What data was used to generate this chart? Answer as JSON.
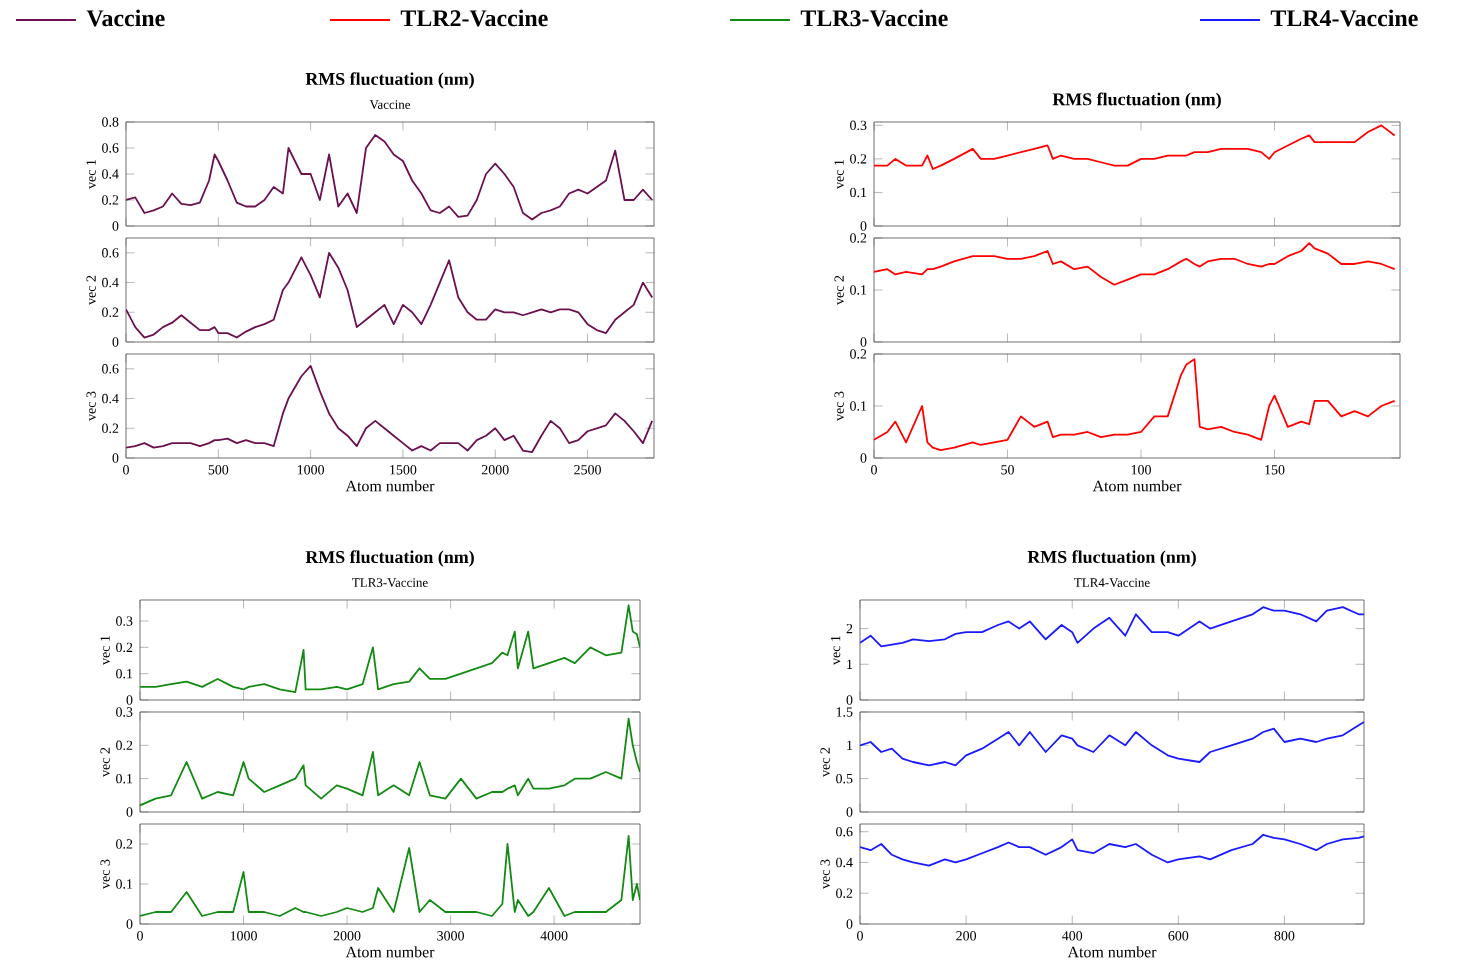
{
  "chart_data": [
    {
      "type": "line",
      "title": "RMS fluctuation (nm)",
      "subtitle": "Vaccine",
      "ylabel": "vec 1",
      "legend": "top",
      "tick_labels": "y",
      "xlim": [
        0,
        2860
      ],
      "xticks": [
        0,
        500,
        1000,
        1500,
        2000,
        2500
      ],
      "ylim": [
        0,
        0.8
      ],
      "yticks": [
        0,
        0.2,
        0.4,
        0.6,
        0.8
      ],
      "x": [
        0,
        50,
        100,
        150,
        200,
        250,
        300,
        350,
        400,
        450,
        480,
        500,
        550,
        600,
        650,
        700,
        750,
        800,
        850,
        880,
        950,
        1000,
        1050,
        1100,
        1150,
        1200,
        1250,
        1300,
        1350,
        1400,
        1450,
        1500,
        1550,
        1600,
        1650,
        1700,
        1750,
        1800,
        1850,
        1900,
        1950,
        2000,
        2050,
        2100,
        2150,
        2200,
        2250,
        2300,
        2350,
        2400,
        2450,
        2500,
        2550,
        2600,
        2650,
        2700,
        2750,
        2800,
        2850
      ],
      "series": [
        {
          "name": "Vaccine",
          "color": "#6b1050",
          "values": [
            0.2,
            0.22,
            0.1,
            0.12,
            0.15,
            0.25,
            0.17,
            0.16,
            0.18,
            0.35,
            0.55,
            0.5,
            0.35,
            0.18,
            0.15,
            0.15,
            0.2,
            0.3,
            0.25,
            0.6,
            0.4,
            0.4,
            0.2,
            0.55,
            0.15,
            0.25,
            0.1,
            0.6,
            0.7,
            0.65,
            0.55,
            0.5,
            0.35,
            0.25,
            0.12,
            0.1,
            0.15,
            0.07,
            0.08,
            0.2,
            0.4,
            0.48,
            0.4,
            0.3,
            0.1,
            0.05,
            0.1,
            0.12,
            0.15,
            0.25,
            0.28,
            0.25,
            0.3,
            0.35,
            0.58,
            0.2,
            0.2,
            0.28,
            0.2
          ]
        }
      ]
    },
    {
      "type": "line",
      "ylabel": "vec 2",
      "tick_labels": "y",
      "xlim": [
        0,
        2860
      ],
      "xticks": [
        0,
        500,
        1000,
        1500,
        2000,
        2500
      ],
      "ylim": [
        0,
        0.7
      ],
      "yticks": [
        0,
        0.2,
        0.4,
        0.6
      ],
      "x": [
        0,
        50,
        100,
        150,
        200,
        250,
        300,
        350,
        400,
        450,
        480,
        500,
        550,
        600,
        650,
        700,
        750,
        800,
        850,
        880,
        950,
        1000,
        1050,
        1100,
        1150,
        1200,
        1250,
        1300,
        1350,
        1400,
        1450,
        1500,
        1550,
        1600,
        1650,
        1700,
        1750,
        1800,
        1850,
        1900,
        1950,
        2000,
        2050,
        2100,
        2150,
        2200,
        2250,
        2300,
        2350,
        2400,
        2450,
        2500,
        2550,
        2600,
        2650,
        2700,
        2750,
        2800,
        2850
      ],
      "series": [
        {
          "color": "#6b1050",
          "values": [
            0.22,
            0.1,
            0.03,
            0.05,
            0.1,
            0.13,
            0.18,
            0.13,
            0.08,
            0.08,
            0.1,
            0.06,
            0.06,
            0.03,
            0.07,
            0.1,
            0.12,
            0.15,
            0.35,
            0.4,
            0.57,
            0.45,
            0.3,
            0.6,
            0.5,
            0.35,
            0.1,
            0.15,
            0.2,
            0.25,
            0.12,
            0.25,
            0.2,
            0.12,
            0.25,
            0.4,
            0.55,
            0.3,
            0.2,
            0.15,
            0.15,
            0.22,
            0.2,
            0.2,
            0.18,
            0.2,
            0.22,
            0.2,
            0.22,
            0.22,
            0.2,
            0.12,
            0.08,
            0.06,
            0.15,
            0.2,
            0.25,
            0.4,
            0.3
          ]
        }
      ]
    },
    {
      "type": "line",
      "ylabel": "vec 3",
      "xlabel": "Atom number",
      "xlim": [
        0,
        2860
      ],
      "xticks": [
        0,
        500,
        1000,
        1500,
        2000,
        2500
      ],
      "ylim": [
        0,
        0.7
      ],
      "yticks": [
        0,
        0.2,
        0.4,
        0.6
      ],
      "x": [
        0,
        50,
        100,
        150,
        200,
        250,
        300,
        350,
        400,
        450,
        480,
        500,
        550,
        600,
        650,
        700,
        750,
        800,
        850,
        880,
        950,
        1000,
        1050,
        1100,
        1150,
        1200,
        1250,
        1300,
        1350,
        1400,
        1450,
        1500,
        1550,
        1600,
        1650,
        1700,
        1750,
        1800,
        1850,
        1900,
        1950,
        2000,
        2050,
        2100,
        2150,
        2200,
        2250,
        2300,
        2350,
        2400,
        2450,
        2500,
        2550,
        2600,
        2650,
        2700,
        2750,
        2800,
        2850
      ],
      "series": [
        {
          "color": "#6b1050",
          "values": [
            0.07,
            0.08,
            0.1,
            0.07,
            0.08,
            0.1,
            0.1,
            0.1,
            0.08,
            0.1,
            0.12,
            0.12,
            0.13,
            0.1,
            0.12,
            0.1,
            0.1,
            0.08,
            0.3,
            0.4,
            0.55,
            0.62,
            0.45,
            0.3,
            0.2,
            0.15,
            0.08,
            0.2,
            0.25,
            0.2,
            0.15,
            0.1,
            0.05,
            0.08,
            0.05,
            0.1,
            0.1,
            0.1,
            0.05,
            0.12,
            0.15,
            0.2,
            0.12,
            0.15,
            0.05,
            0.04,
            0.15,
            0.25,
            0.2,
            0.1,
            0.12,
            0.18,
            0.2,
            0.22,
            0.3,
            0.25,
            0.18,
            0.1,
            0.25
          ]
        }
      ]
    },
    {
      "type": "line",
      "title": "RMS fluctuation (nm)",
      "ylabel": "vec 1",
      "legend": "top",
      "tick_labels": "y",
      "xlim": [
        0,
        197
      ],
      "xticks": [
        0,
        50,
        100,
        150
      ],
      "ylim": [
        0,
        0.31
      ],
      "yticks": [
        0,
        0.1,
        0.2,
        0.3
      ],
      "x": [
        0,
        5,
        8,
        12,
        18,
        20,
        22,
        25,
        30,
        37,
        40,
        45,
        50,
        55,
        60,
        65,
        67,
        70,
        75,
        80,
        85,
        90,
        95,
        100,
        105,
        110,
        115,
        117,
        120,
        122,
        125,
        130,
        135,
        140,
        145,
        148,
        150,
        155,
        160,
        163,
        165,
        170,
        175,
        180,
        185,
        190,
        195
      ],
      "series": [
        {
          "name": "TLR2-Vaccine",
          "color": "#ff0000",
          "values": [
            0.18,
            0.18,
            0.2,
            0.18,
            0.18,
            0.21,
            0.17,
            0.18,
            0.2,
            0.23,
            0.2,
            0.2,
            0.21,
            0.22,
            0.23,
            0.24,
            0.2,
            0.21,
            0.2,
            0.2,
            0.19,
            0.18,
            0.18,
            0.2,
            0.2,
            0.21,
            0.21,
            0.21,
            0.22,
            0.22,
            0.22,
            0.23,
            0.23,
            0.23,
            0.22,
            0.2,
            0.22,
            0.24,
            0.26,
            0.27,
            0.25,
            0.25,
            0.25,
            0.25,
            0.28,
            0.3,
            0.27
          ]
        }
      ]
    },
    {
      "type": "line",
      "ylabel": "vec 2",
      "tick_labels": "y",
      "xlim": [
        0,
        197
      ],
      "xticks": [
        0,
        50,
        100,
        150
      ],
      "ylim": [
        0,
        0.2
      ],
      "yticks": [
        0,
        0.1,
        0.2
      ],
      "x": [
        0,
        5,
        8,
        12,
        18,
        20,
        22,
        25,
        30,
        37,
        40,
        45,
        50,
        55,
        60,
        65,
        67,
        70,
        75,
        80,
        85,
        90,
        95,
        100,
        105,
        110,
        115,
        117,
        120,
        122,
        125,
        130,
        135,
        140,
        145,
        148,
        150,
        155,
        160,
        163,
        165,
        170,
        175,
        180,
        185,
        190,
        195
      ],
      "series": [
        {
          "color": "#ff0000",
          "values": [
            0.135,
            0.14,
            0.13,
            0.135,
            0.13,
            0.14,
            0.14,
            0.145,
            0.155,
            0.165,
            0.165,
            0.165,
            0.16,
            0.16,
            0.165,
            0.175,
            0.15,
            0.155,
            0.14,
            0.145,
            0.125,
            0.11,
            0.12,
            0.13,
            0.13,
            0.14,
            0.155,
            0.16,
            0.15,
            0.145,
            0.155,
            0.16,
            0.16,
            0.15,
            0.145,
            0.15,
            0.15,
            0.165,
            0.175,
            0.19,
            0.18,
            0.17,
            0.15,
            0.15,
            0.155,
            0.15,
            0.14
          ]
        }
      ]
    },
    {
      "type": "line",
      "ylabel": "vec 3",
      "xlabel": "Atom number",
      "xlim": [
        0,
        197
      ],
      "xticks": [
        0,
        50,
        100,
        150
      ],
      "ylim": [
        0,
        0.2
      ],
      "yticks": [
        0,
        0.1,
        0.2
      ],
      "x": [
        0,
        5,
        8,
        12,
        18,
        20,
        22,
        25,
        30,
        37,
        40,
        45,
        50,
        55,
        60,
        65,
        67,
        70,
        75,
        80,
        85,
        90,
        95,
        100,
        105,
        110,
        115,
        117,
        120,
        122,
        125,
        130,
        135,
        140,
        145,
        148,
        150,
        155,
        160,
        163,
        165,
        170,
        175,
        180,
        185,
        190,
        195
      ],
      "series": [
        {
          "color": "#ff0000",
          "values": [
            0.035,
            0.05,
            0.07,
            0.03,
            0.1,
            0.03,
            0.02,
            0.015,
            0.02,
            0.03,
            0.025,
            0.03,
            0.035,
            0.08,
            0.06,
            0.07,
            0.04,
            0.045,
            0.045,
            0.05,
            0.04,
            0.045,
            0.045,
            0.05,
            0.08,
            0.08,
            0.16,
            0.18,
            0.19,
            0.06,
            0.055,
            0.06,
            0.05,
            0.045,
            0.035,
            0.1,
            0.12,
            0.06,
            0.07,
            0.065,
            0.11,
            0.11,
            0.08,
            0.09,
            0.08,
            0.1,
            0.11
          ]
        }
      ]
    },
    {
      "type": "line",
      "title": "RMS fluctuation (nm)",
      "subtitle": "TLR3-Vaccine",
      "ylabel": "vec 1",
      "legend": "top",
      "tick_labels": "y",
      "xlim": [
        0,
        4830
      ],
      "xticks": [
        0,
        1000,
        2000,
        3000,
        4000
      ],
      "ylim": [
        0,
        0.38
      ],
      "yticks": [
        0,
        0.1,
        0.2,
        0.3
      ],
      "x": [
        0,
        150,
        300,
        450,
        600,
        750,
        900,
        1000,
        1050,
        1200,
        1350,
        1500,
        1580,
        1600,
        1750,
        1900,
        2000,
        2150,
        2250,
        2300,
        2450,
        2600,
        2700,
        2800,
        2950,
        3100,
        3250,
        3400,
        3500,
        3550,
        3620,
        3650,
        3750,
        3800,
        3950,
        4100,
        4200,
        4350,
        4500,
        4650,
        4720,
        4760,
        4800,
        4830
      ],
      "series": [
        {
          "name": "TLR3-Vaccine",
          "color": "#138a13",
          "values": [
            0.05,
            0.05,
            0.06,
            0.07,
            0.05,
            0.08,
            0.05,
            0.04,
            0.05,
            0.06,
            0.04,
            0.03,
            0.19,
            0.04,
            0.04,
            0.05,
            0.04,
            0.06,
            0.2,
            0.04,
            0.06,
            0.07,
            0.12,
            0.08,
            0.08,
            0.1,
            0.12,
            0.14,
            0.18,
            0.17,
            0.26,
            0.12,
            0.26,
            0.12,
            0.14,
            0.16,
            0.14,
            0.2,
            0.17,
            0.18,
            0.36,
            0.26,
            0.25,
            0.2
          ]
        }
      ]
    },
    {
      "type": "line",
      "ylabel": "vec 2",
      "tick_labels": "y",
      "xlim": [
        0,
        4830
      ],
      "xticks": [
        0,
        1000,
        2000,
        3000,
        4000
      ],
      "ylim": [
        0,
        0.3
      ],
      "yticks": [
        0,
        0.1,
        0.2,
        0.3
      ],
      "x": [
        0,
        150,
        300,
        450,
        600,
        750,
        900,
        1000,
        1050,
        1200,
        1350,
        1500,
        1580,
        1600,
        1750,
        1900,
        2000,
        2150,
        2250,
        2300,
        2450,
        2600,
        2700,
        2800,
        2950,
        3100,
        3250,
        3400,
        3500,
        3550,
        3620,
        3650,
        3750,
        3800,
        3950,
        4100,
        4200,
        4350,
        4500,
        4650,
        4720,
        4760,
        4800,
        4830
      ],
      "series": [
        {
          "color": "#138a13",
          "values": [
            0.02,
            0.04,
            0.05,
            0.15,
            0.04,
            0.06,
            0.05,
            0.15,
            0.1,
            0.06,
            0.08,
            0.1,
            0.14,
            0.08,
            0.04,
            0.08,
            0.07,
            0.05,
            0.18,
            0.05,
            0.08,
            0.05,
            0.15,
            0.05,
            0.04,
            0.1,
            0.04,
            0.06,
            0.06,
            0.07,
            0.08,
            0.05,
            0.1,
            0.07,
            0.07,
            0.08,
            0.1,
            0.1,
            0.12,
            0.1,
            0.28,
            0.2,
            0.15,
            0.12
          ]
        }
      ]
    },
    {
      "type": "line",
      "ylabel": "vec 3",
      "xlabel": "Atom number",
      "xlim": [
        0,
        4830
      ],
      "xticks": [
        0,
        1000,
        2000,
        3000,
        4000
      ],
      "ylim": [
        0,
        0.25
      ],
      "yticks": [
        0,
        0.1,
        0.2
      ],
      "x": [
        0,
        150,
        300,
        450,
        600,
        750,
        900,
        1000,
        1050,
        1200,
        1350,
        1500,
        1580,
        1600,
        1750,
        1900,
        2000,
        2150,
        2250,
        2300,
        2450,
        2600,
        2700,
        2800,
        2950,
        3100,
        3250,
        3400,
        3500,
        3550,
        3620,
        3650,
        3750,
        3800,
        3950,
        4100,
        4200,
        4350,
        4500,
        4650,
        4720,
        4760,
        4800,
        4830
      ],
      "series": [
        {
          "color": "#138a13",
          "values": [
            0.02,
            0.03,
            0.03,
            0.08,
            0.02,
            0.03,
            0.03,
            0.13,
            0.03,
            0.03,
            0.02,
            0.04,
            0.03,
            0.03,
            0.02,
            0.03,
            0.04,
            0.03,
            0.04,
            0.09,
            0.03,
            0.19,
            0.03,
            0.06,
            0.03,
            0.03,
            0.03,
            0.02,
            0.05,
            0.2,
            0.03,
            0.06,
            0.02,
            0.03,
            0.09,
            0.02,
            0.03,
            0.03,
            0.03,
            0.06,
            0.22,
            0.06,
            0.1,
            0.06
          ]
        }
      ]
    },
    {
      "type": "line",
      "title": "RMS fluctuation (nm)",
      "subtitle": "TLR4-Vaccine",
      "ylabel": "vec 1",
      "legend": "top",
      "tick_labels": "y",
      "xlim": [
        0,
        950
      ],
      "xticks": [
        0,
        200,
        400,
        600,
        800
      ],
      "ylim": [
        0,
        2.8
      ],
      "yticks": [
        0,
        1,
        2
      ],
      "x": [
        0,
        20,
        40,
        60,
        80,
        100,
        130,
        160,
        180,
        200,
        230,
        260,
        280,
        300,
        320,
        350,
        380,
        400,
        410,
        440,
        470,
        500,
        520,
        550,
        580,
        600,
        640,
        660,
        700,
        740,
        760,
        780,
        800,
        830,
        860,
        880,
        910,
        940,
        950
      ],
      "series": [
        {
          "name": "TLR4-Vaccine",
          "color": "#1a1aff",
          "values": [
            1.6,
            1.8,
            1.5,
            1.55,
            1.6,
            1.7,
            1.65,
            1.7,
            1.85,
            1.9,
            1.9,
            2.1,
            2.2,
            2.0,
            2.2,
            1.7,
            2.1,
            1.9,
            1.6,
            2.0,
            2.3,
            1.8,
            2.4,
            1.9,
            1.9,
            1.8,
            2.2,
            2.0,
            2.2,
            2.4,
            2.6,
            2.5,
            2.5,
            2.4,
            2.2,
            2.5,
            2.6,
            2.4,
            2.4
          ]
        }
      ]
    },
    {
      "type": "line",
      "ylabel": "vec 2",
      "tick_labels": "y",
      "xlim": [
        0,
        950
      ],
      "xticks": [
        0,
        200,
        400,
        600,
        800
      ],
      "ylim": [
        0,
        1.5
      ],
      "yticks": [
        0,
        0.5,
        1,
        1.5
      ],
      "x": [
        0,
        20,
        40,
        60,
        80,
        100,
        130,
        160,
        180,
        200,
        230,
        260,
        280,
        300,
        320,
        350,
        380,
        400,
        410,
        440,
        470,
        500,
        520,
        550,
        580,
        600,
        640,
        660,
        700,
        740,
        760,
        780,
        800,
        830,
        860,
        880,
        910,
        940,
        950
      ],
      "series": [
        {
          "color": "#1a1aff",
          "values": [
            1.0,
            1.05,
            0.9,
            0.95,
            0.8,
            0.75,
            0.7,
            0.75,
            0.7,
            0.85,
            0.95,
            1.1,
            1.2,
            1.0,
            1.2,
            0.9,
            1.15,
            1.1,
            1.0,
            0.9,
            1.15,
            1.0,
            1.2,
            1.0,
            0.85,
            0.8,
            0.75,
            0.9,
            1.0,
            1.1,
            1.2,
            1.25,
            1.05,
            1.1,
            1.05,
            1.1,
            1.15,
            1.3,
            1.35
          ]
        }
      ]
    },
    {
      "type": "line",
      "ylabel": "vec 3",
      "xlabel": "Atom number",
      "xlim": [
        0,
        950
      ],
      "xticks": [
        0,
        200,
        400,
        600,
        800
      ],
      "ylim": [
        0,
        0.65
      ],
      "yticks": [
        0,
        0.2,
        0.4,
        0.6
      ],
      "x": [
        0,
        20,
        40,
        60,
        80,
        100,
        130,
        160,
        180,
        200,
        230,
        260,
        280,
        300,
        320,
        350,
        380,
        400,
        410,
        440,
        470,
        500,
        520,
        550,
        580,
        600,
        640,
        660,
        700,
        740,
        760,
        780,
        800,
        830,
        860,
        880,
        910,
        940,
        950
      ],
      "series": [
        {
          "color": "#1a1aff",
          "values": [
            0.5,
            0.48,
            0.52,
            0.45,
            0.42,
            0.4,
            0.38,
            0.42,
            0.4,
            0.42,
            0.46,
            0.5,
            0.53,
            0.5,
            0.5,
            0.45,
            0.5,
            0.55,
            0.48,
            0.46,
            0.52,
            0.5,
            0.52,
            0.45,
            0.4,
            0.42,
            0.44,
            0.42,
            0.48,
            0.52,
            0.58,
            0.56,
            0.55,
            0.52,
            0.48,
            0.52,
            0.55,
            0.56,
            0.57
          ]
        }
      ]
    }
  ]
}
